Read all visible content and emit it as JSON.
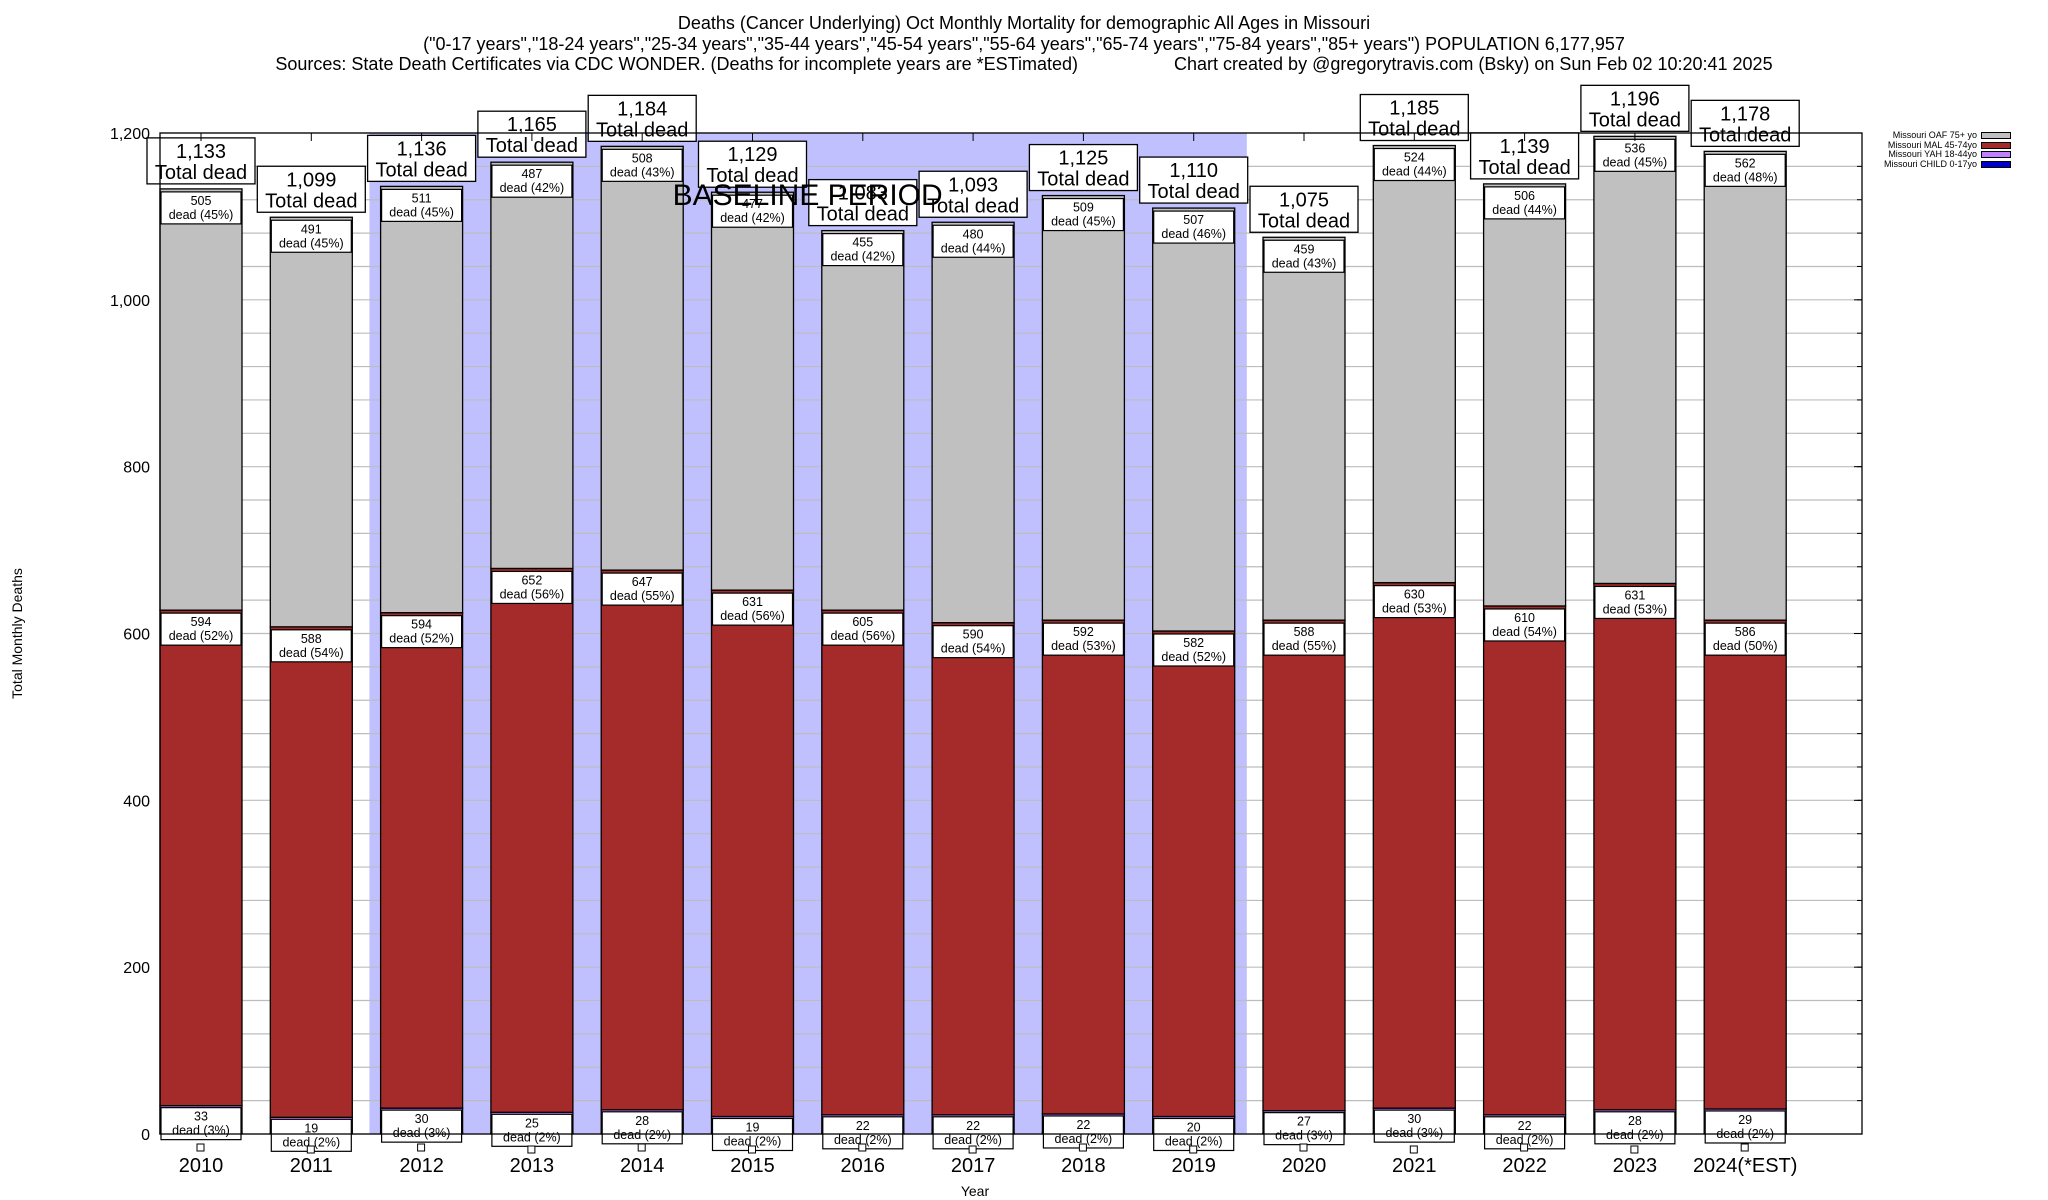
{
  "chart_data": {
    "type": "bar",
    "stacked": true,
    "title": "Deaths (Cancer Underlying) Oct Monthly Mortality for demographic All Ages in Missouri",
    "subtitle": "(\"0-17 years\",\"18-24 years\",\"25-34 years\",\"35-44 years\",\"45-54 years\",\"55-64 years\",\"65-74 years\",\"75-84 years\",\"85+ years\") POPULATION 6,177,957",
    "sources": "Sources: State Death Certificates via CDC WONDER. (Deaths for incomplete years are *ESTimated)",
    "credit": "Chart created by @gregorytravis.com (Bsky) on Sun Feb 02 10:20:41 2025",
    "xlabel": "Year",
    "ylabel": "Total Monthly Deaths",
    "ylim": [
      0,
      1200
    ],
    "yticks": [
      0,
      200,
      400,
      600,
      800,
      1000,
      1200
    ],
    "ytick_labels": [
      "0",
      "200",
      "400",
      "600",
      "800",
      "1,000",
      "1,200"
    ],
    "y_minor_step": 40,
    "grid": true,
    "legend_position": "top-right",
    "categories": [
      "2010",
      "2011",
      "2012",
      "2013",
      "2014",
      "2015",
      "2016",
      "2017",
      "2018",
      "2019",
      "2020",
      "2021",
      "2022",
      "2023",
      "2024(*EST)"
    ],
    "series": [
      {
        "name": "Missouri CHILD 0-17yo",
        "color": "#0000cc",
        "values": [
          1,
          1,
          1,
          1,
          1,
          2,
          1,
          1,
          2,
          1,
          1,
          1,
          1,
          1,
          1
        ],
        "labels": [],
        "percents": []
      },
      {
        "name": "Missouri YAH 18-44yo",
        "color": "#c080ff",
        "values": [
          33,
          19,
          30,
          25,
          28,
          19,
          22,
          22,
          22,
          20,
          27,
          30,
          22,
          28,
          29
        ],
        "percents": [
          "3%",
          "2%",
          "3%",
          "2%",
          "2%",
          "2%",
          "2%",
          "2%",
          "2%",
          "2%",
          "3%",
          "3%",
          "2%",
          "2%",
          "2%"
        ]
      },
      {
        "name": "Missouri MAL 45-74yo",
        "color": "#a52a2a",
        "values": [
          594,
          588,
          594,
          652,
          647,
          631,
          605,
          590,
          592,
          582,
          588,
          630,
          610,
          631,
          586
        ],
        "percents": [
          "52%",
          "54%",
          "52%",
          "56%",
          "55%",
          "56%",
          "56%",
          "54%",
          "53%",
          "52%",
          "55%",
          "53%",
          "54%",
          "53%",
          "50%"
        ]
      },
      {
        "name": "Missouri OAF 75+ yo",
        "color": "#c0c0c0",
        "values": [
          505,
          491,
          511,
          487,
          508,
          477,
          455,
          480,
          509,
          507,
          459,
          524,
          506,
          536,
          562
        ],
        "percents": [
          "45%",
          "45%",
          "45%",
          "42%",
          "43%",
          "42%",
          "42%",
          "44%",
          "45%",
          "46%",
          "43%",
          "44%",
          "44%",
          "45%",
          "48%"
        ]
      }
    ],
    "totals": [
      1133,
      1099,
      1136,
      1165,
      1184,
      1129,
      1083,
      1093,
      1125,
      1110,
      1075,
      1185,
      1139,
      1196,
      1178
    ],
    "total_labels": [
      "1,133",
      "1,099",
      "1,136",
      "1,165",
      "1,184",
      "1,129",
      "1,083",
      "1,093",
      "1,125",
      "1,110",
      "1,075",
      "1,185",
      "1,139",
      "1,196",
      "1,178"
    ],
    "total_suffix": "Total dead",
    "segment_prefix": "dead",
    "annotations": [
      {
        "text": "BASELINE PERIOD",
        "span": [
          "2012",
          "2019"
        ],
        "fill": "#c0c0ff"
      }
    ]
  },
  "legend": {
    "items": [
      {
        "label": "Missouri OAF 75+ yo",
        "color": "#c0c0c0"
      },
      {
        "label": "Missouri MAL 45-74yo",
        "color": "#a52a2a"
      },
      {
        "label": "Missouri YAH 18-44yo",
        "color": "#c080ff"
      },
      {
        "label": "Missouri CHILD 0-17yo",
        "color": "#0000cc"
      }
    ]
  }
}
